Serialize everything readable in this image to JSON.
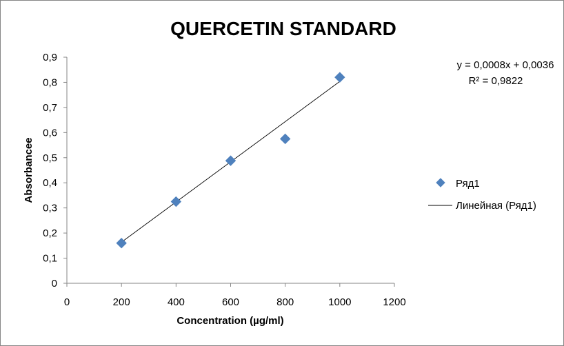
{
  "chart_data": {
    "type": "scatter",
    "title": "QUERCETIN STANDARD",
    "xlabel": "Concentration (µg/ml)",
    "ylabel": "Absorbancee",
    "xlim": [
      0,
      1200
    ],
    "ylim": [
      0,
      0.9
    ],
    "x_ticks": [
      0,
      200,
      400,
      600,
      800,
      1000,
      1200
    ],
    "x_tick_labels": [
      "0",
      "200",
      "400",
      "600",
      "800",
      "1000",
      "1200"
    ],
    "y_ticks": [
      0,
      0.1,
      0.2,
      0.3,
      0.4,
      0.5,
      0.6,
      0.7,
      0.8,
      0.9
    ],
    "y_tick_labels": [
      "0",
      "0,1",
      "0,2",
      "0,3",
      "0,4",
      "0,5",
      "0,6",
      "0,7",
      "0,8",
      "0,9"
    ],
    "series": [
      {
        "name": "Ряд1",
        "marker": "diamond",
        "color": "#4f81bd",
        "x": [
          200,
          400,
          600,
          800,
          1000
        ],
        "y": [
          0.16,
          0.325,
          0.488,
          0.575,
          0.82
        ]
      }
    ],
    "trendline": {
      "name": "Линейная (Ряд1)",
      "slope": 0.0008,
      "intercept": 0.0036,
      "x_range": [
        200,
        1000
      ],
      "color": "#000000",
      "equation_label": "y = 0,0008x + 0,0036",
      "r2_label": "R² = 0,9822"
    },
    "grid": false,
    "legend_position": "right"
  }
}
